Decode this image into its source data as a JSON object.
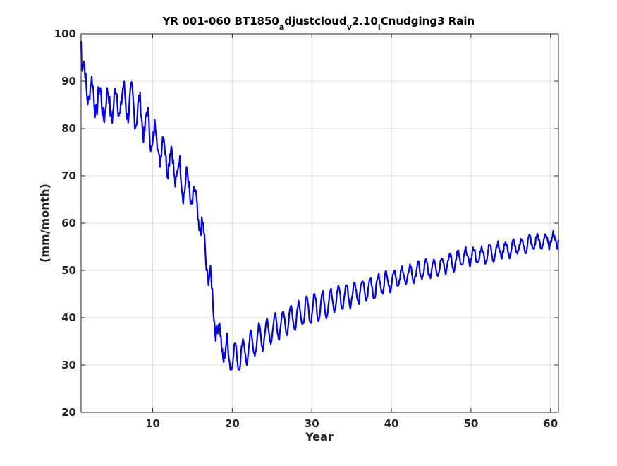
{
  "chart_data": {
    "type": "line",
    "title_parts": {
      "main": "YR 001-060 BT1850",
      "sub_a": "a",
      "mid": "djustcloud",
      "sub_v": "v",
      "mid2": "2.10",
      "sub_l": "l",
      "tail": "Cnudging3 Rain"
    },
    "xlabel": "Year",
    "ylabel": "(mm/month)",
    "xlim": [
      1,
      61
    ],
    "ylim": [
      20,
      100
    ],
    "xticks": [
      10,
      20,
      30,
      40,
      50,
      60
    ],
    "yticks": [
      20,
      30,
      40,
      50,
      60,
      70,
      80,
      90,
      100
    ],
    "grid": true,
    "line_color": "#0000ff",
    "series": [
      {
        "annual_trend": [
          [
            1,
            93
          ],
          [
            2,
            88
          ],
          [
            3,
            86
          ],
          [
            4,
            85
          ],
          [
            5,
            85
          ],
          [
            6,
            86
          ],
          [
            7,
            85.5
          ],
          [
            8,
            84
          ],
          [
            9,
            81.5
          ],
          [
            10,
            78.5
          ],
          [
            11,
            76
          ],
          [
            12,
            74
          ],
          [
            13,
            71
          ],
          [
            14,
            68.5
          ],
          [
            15,
            66
          ],
          [
            16,
            60
          ],
          [
            17,
            50
          ],
          [
            18,
            38
          ],
          [
            19,
            33
          ],
          [
            20,
            31.5
          ],
          [
            21,
            32
          ],
          [
            22,
            33.5
          ],
          [
            23,
            35
          ],
          [
            24,
            36.5
          ],
          [
            25,
            37.5
          ],
          [
            26,
            38.5
          ],
          [
            27,
            39.5
          ],
          [
            28,
            40.5
          ],
          [
            29,
            41
          ],
          [
            30,
            42
          ],
          [
            31,
            42.5
          ],
          [
            32,
            43
          ],
          [
            33,
            44
          ],
          [
            34,
            44.5
          ],
          [
            35,
            45
          ],
          [
            36,
            45.5
          ],
          [
            37,
            46
          ],
          [
            38,
            46.5
          ],
          [
            39,
            47.5
          ],
          [
            40,
            48
          ],
          [
            41,
            48.5
          ],
          [
            42,
            49
          ],
          [
            43,
            49.5
          ],
          [
            44,
            50
          ],
          [
            45,
            50.5
          ],
          [
            46,
            51
          ],
          [
            47,
            51.5
          ],
          [
            48,
            52
          ],
          [
            49,
            52.5
          ],
          [
            50,
            53
          ],
          [
            51,
            53
          ],
          [
            52,
            53.5
          ],
          [
            53,
            54
          ],
          [
            54,
            54.5
          ],
          [
            55,
            54.5
          ],
          [
            56,
            55
          ],
          [
            57,
            55.5
          ],
          [
            58,
            56
          ],
          [
            59,
            56
          ],
          [
            60,
            56.5
          ],
          [
            61,
            56.5
          ]
        ],
        "seasonal_amplitude": [
          [
            1,
            3
          ],
          [
            10,
            3.5
          ],
          [
            16,
            3
          ],
          [
            18,
            2.5
          ],
          [
            20,
            3
          ],
          [
            30,
            2.8
          ],
          [
            40,
            2
          ],
          [
            50,
            1.7
          ],
          [
            61,
            1.5
          ]
        ],
        "start_value": 98.5,
        "end_value": 56.5,
        "minimum_value": 29
      }
    ]
  }
}
